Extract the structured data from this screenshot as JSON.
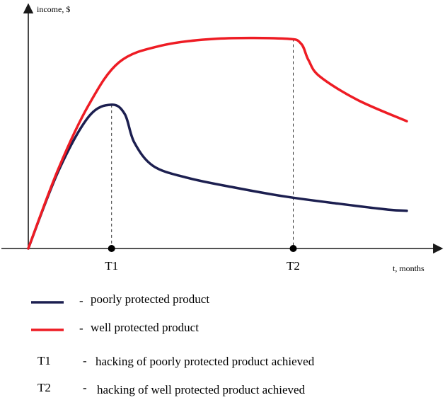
{
  "chart_data": {
    "type": "line",
    "title": "",
    "xlabel": "t, months",
    "ylabel": "income, $",
    "xlim": [
      0,
      10
    ],
    "ylim": [
      0,
      10
    ],
    "grid": false,
    "series": [
      {
        "name": "poorly protected product",
        "color": "#1c1f50",
        "points": [
          [
            0.0,
            0.0
          ],
          [
            0.8,
            3.3
          ],
          [
            1.6,
            5.6
          ],
          [
            2.2,
            6.1
          ],
          [
            2.55,
            5.7
          ],
          [
            2.8,
            4.5
          ],
          [
            3.3,
            3.5
          ],
          [
            4.2,
            3.0
          ],
          [
            5.4,
            2.6
          ],
          [
            6.8,
            2.2
          ],
          [
            8.2,
            1.9
          ],
          [
            9.5,
            1.65
          ],
          [
            10.0,
            1.6
          ]
        ]
      },
      {
        "name": "well protected product",
        "color": "#ee1c24",
        "points": [
          [
            0.0,
            0.0
          ],
          [
            0.8,
            3.4
          ],
          [
            1.6,
            6.1
          ],
          [
            2.4,
            7.9
          ],
          [
            3.5,
            8.6
          ],
          [
            5.0,
            8.9
          ],
          [
            6.8,
            8.9
          ],
          [
            7.2,
            8.7
          ],
          [
            7.4,
            8.0
          ],
          [
            7.7,
            7.3
          ],
          [
            8.7,
            6.3
          ],
          [
            10.0,
            5.4
          ]
        ]
      }
    ],
    "markers": [
      {
        "label": "T1",
        "x": 2.2,
        "y": 6.1
      },
      {
        "label": "T2",
        "x": 7.0,
        "y": 8.9
      }
    ]
  },
  "legend": {
    "dash_symbol": "-",
    "items": [
      {
        "key": "line",
        "color": "#1c1f50",
        "text": "poorly protected product"
      },
      {
        "key": "line",
        "color": "#ee1c24",
        "text": "well protected product"
      },
      {
        "key": "T1",
        "text": "hacking of poorly protected product achieved"
      },
      {
        "key": "T2",
        "text": "hacking of well protected product achieved"
      }
    ]
  }
}
